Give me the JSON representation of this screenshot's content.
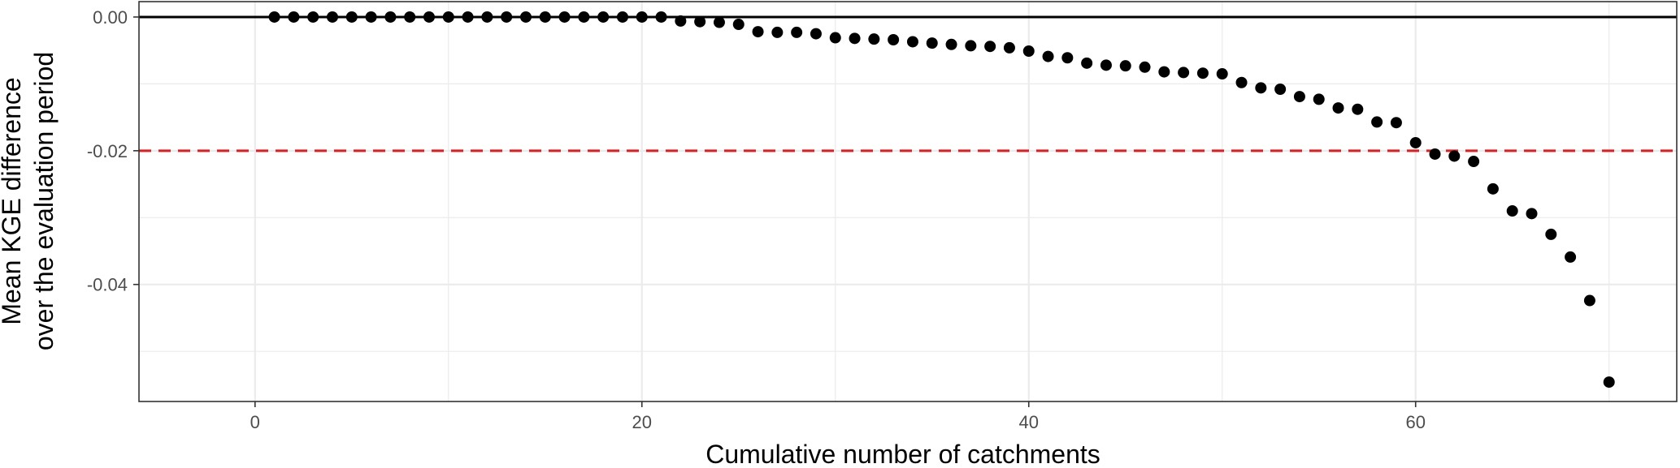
{
  "chart_data": {
    "type": "scatter",
    "title": "",
    "xlabel": "Cumulative number of catchments",
    "ylabel_lines": [
      "Mean KGE difference",
      "over the evaluation period"
    ],
    "xlim": [
      -6,
      73.5
    ],
    "ylim": [
      -0.0575,
      0.0023
    ],
    "x_ticks": [
      0,
      20,
      40,
      60
    ],
    "x_tick_labels": [
      "0",
      "20",
      "40",
      "60"
    ],
    "y_ticks": [
      0,
      -0.02,
      -0.04
    ],
    "y_tick_labels": [
      "0.00",
      "-0.02",
      "-0.04"
    ],
    "grid": true,
    "hline_solid": 0,
    "hline_dashed": -0.02,
    "colors": {
      "points": "#000000",
      "dashed_line": "#e41a1c",
      "grid": "#ebebeb",
      "panel_border": "#333333"
    },
    "series": [
      {
        "x": [
          1,
          2,
          3,
          4,
          5,
          6,
          7,
          8,
          9,
          10,
          11,
          12,
          13,
          14,
          15,
          16,
          17,
          18,
          19,
          20,
          21,
          22,
          23,
          24,
          25,
          26,
          27,
          28,
          29,
          30,
          31,
          32,
          33,
          34,
          35,
          36,
          37,
          38,
          39,
          40,
          41,
          42,
          43,
          44,
          45,
          46,
          47,
          48,
          49,
          50,
          51,
          52,
          53,
          54,
          55,
          56,
          57,
          58,
          59,
          60,
          61,
          62,
          63,
          64,
          65,
          66,
          67,
          68,
          69,
          70
        ],
        "y": [
          0,
          0,
          0,
          0,
          0,
          0,
          0,
          0,
          0,
          0,
          0,
          0,
          0,
          0,
          0,
          0,
          0,
          0,
          0,
          0,
          0,
          -0.0006,
          -0.0007,
          -0.0008,
          -0.0011,
          -0.0022,
          -0.0023,
          -0.0023,
          -0.0025,
          -0.0031,
          -0.0032,
          -0.0033,
          -0.0034,
          -0.0037,
          -0.0039,
          -0.0041,
          -0.0043,
          -0.0044,
          -0.0046,
          -0.0051,
          -0.0059,
          -0.0061,
          -0.0069,
          -0.0072,
          -0.0073,
          -0.0075,
          -0.0082,
          -0.0083,
          -0.0084,
          -0.0085,
          -0.0098,
          -0.0106,
          -0.0108,
          -0.0119,
          -0.0123,
          -0.0136,
          -0.0138,
          -0.0157,
          -0.0158,
          -0.0188,
          -0.0205,
          -0.0208,
          -0.0216,
          -0.0257,
          -0.029,
          -0.0294,
          -0.0325,
          -0.0359,
          -0.0424,
          -0.0546
        ]
      }
    ]
  }
}
